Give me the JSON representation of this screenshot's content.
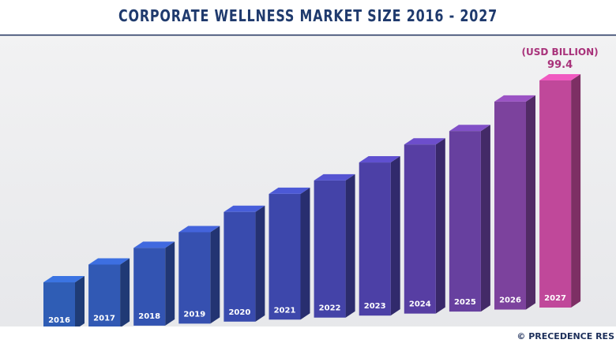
{
  "chart_data": {
    "type": "bar3d",
    "title": "CORPORATE WELLNESS MARKET SIZE 2016 - 2027",
    "unit": "(USD BILLION)",
    "source": "© PRECEDENCE RES",
    "categories": [
      "2016",
      "2017",
      "2018",
      "2019",
      "2020",
      "2021",
      "2022",
      "2023",
      "2024",
      "2025",
      "2026",
      "2027"
    ],
    "values": [
      20.7,
      27.6,
      34,
      40,
      48,
      55,
      60,
      67,
      74,
      79,
      91,
      99.4
    ],
    "colors": [
      "#2f5db5",
      "#3159b4",
      "#3354b2",
      "#3650b0",
      "#394bae",
      "#3d47ab",
      "#4443a8",
      "#4c40a6",
      "#573ea3",
      "#67409f",
      "#7c429d",
      "#c0489a"
    ],
    "labeled_index": 11,
    "ylim": [
      0,
      99.4
    ]
  }
}
